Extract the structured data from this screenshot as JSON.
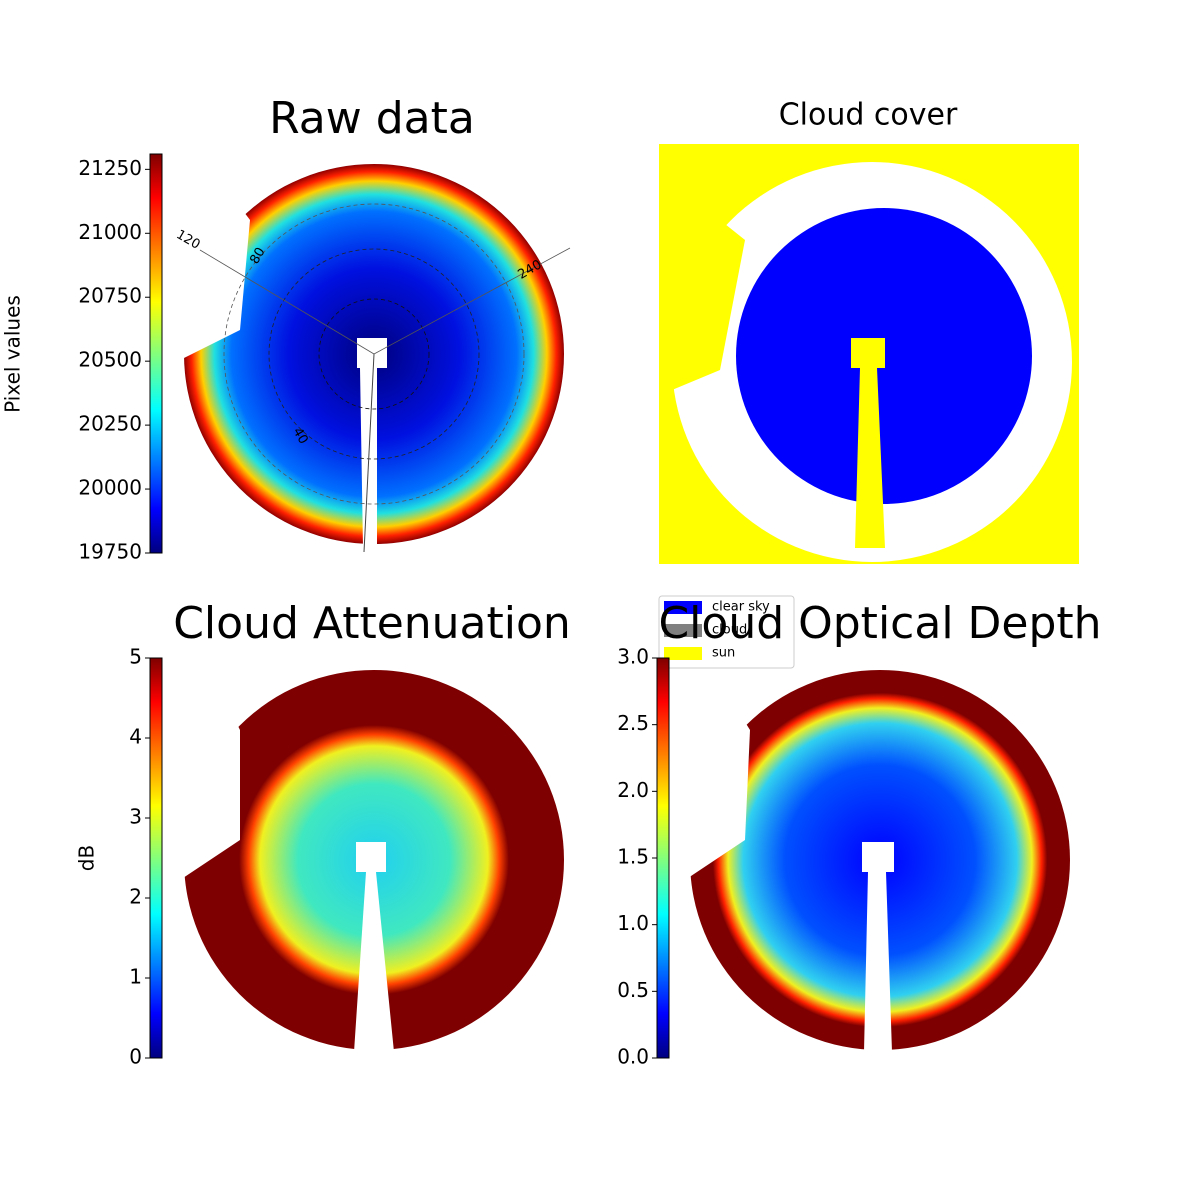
{
  "chart_data": [
    {
      "type": "image",
      "title": "Raw data",
      "colorbar_label": "Pixel values",
      "ylim": [
        19750,
        21310
      ],
      "yticks": [
        19750,
        20000,
        20250,
        20500,
        20750,
        21000,
        21250
      ],
      "annotations": [
        "120",
        "240",
        "80",
        "40"
      ]
    },
    {
      "type": "image",
      "title": "Cloud cover",
      "series": [
        {
          "name": "clear sky",
          "color": "#0000ff"
        },
        {
          "name": "cloud",
          "color": "#808080"
        },
        {
          "name": "sun",
          "color": "#ffff00"
        }
      ]
    },
    {
      "type": "image",
      "title": "Cloud Attenuation",
      "colorbar_label": "dB",
      "ylim": [
        0,
        5
      ],
      "yticks": [
        0,
        1,
        2,
        3,
        4,
        5
      ]
    },
    {
      "type": "image",
      "title": "Cloud Optical Depth",
      "ylim": [
        0,
        3
      ],
      "yticks": [
        {
          "value": 0,
          "label": "0.0"
        },
        0.5,
        {
          "value": 1,
          "label": "1.0"
        },
        1.5,
        {
          "value": 2,
          "label": "2.0"
        },
        2.5,
        {
          "value": 3,
          "label": "3.0"
        }
      ]
    }
  ]
}
